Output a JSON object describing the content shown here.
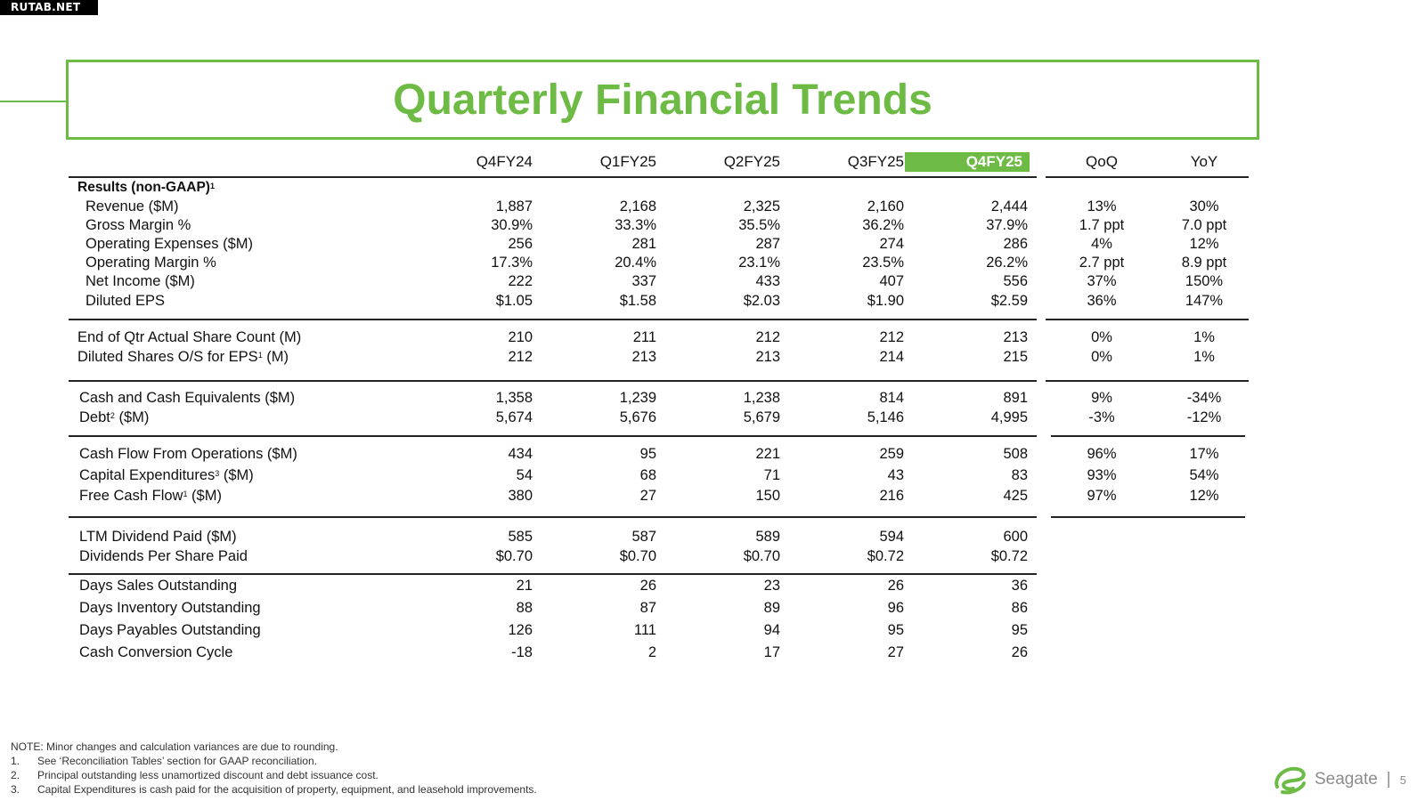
{
  "watermark": "RUTAB.NET",
  "title": "Quarterly Financial Trends",
  "columns": [
    "Q4FY24",
    "Q1FY25",
    "Q2FY25",
    "Q3FY25",
    "Q4FY25"
  ],
  "compare_columns": [
    "QoQ",
    "YoY"
  ],
  "accent_color": "#6dbb45",
  "section_header": {
    "label": "Results (non-GAAP)",
    "sup": "1"
  },
  "groups": [
    {
      "rows": [
        {
          "label": "Revenue ($M)",
          "values": [
            "1,887",
            "2,168",
            "2,325",
            "2,160",
            "2,444"
          ],
          "qoq": "13%",
          "yoy": "30%"
        },
        {
          "label": "Gross Margin %",
          "values": [
            "30.9%",
            "33.3%",
            "35.5%",
            "36.2%",
            "37.9%"
          ],
          "qoq": "1.7 ppt",
          "yoy": "7.0 ppt"
        },
        {
          "label": "Operating Expenses ($M)",
          "values": [
            "256",
            "281",
            "287",
            "274",
            "286"
          ],
          "qoq": "4%",
          "yoy": "12%"
        },
        {
          "label": "Operating Margin %",
          "values": [
            "17.3%",
            "20.4%",
            "23.1%",
            "23.5%",
            "26.2%"
          ],
          "qoq": "2.7 ppt",
          "yoy": "8.9 ppt"
        },
        {
          "label": "Net Income ($M)",
          "values": [
            "222",
            "337",
            "433",
            "407",
            "556"
          ],
          "qoq": "37%",
          "yoy": "150%"
        },
        {
          "label": "Diluted EPS",
          "values": [
            "$1.05",
            "$1.58",
            "$2.03",
            "$1.90",
            "$2.59"
          ],
          "qoq": "36%",
          "yoy": "147%"
        }
      ]
    },
    {
      "rows": [
        {
          "label": "End of Qtr Actual Share Count (M)",
          "values": [
            "210",
            "211",
            "212",
            "212",
            "213"
          ],
          "qoq": "0%",
          "yoy": "1%"
        },
        {
          "label": "Diluted Shares O/S for EPS",
          "sup": "1",
          "suffix": " (M)",
          "values": [
            "212",
            "213",
            "213",
            "214",
            "215"
          ],
          "qoq": "0%",
          "yoy": "1%"
        }
      ]
    },
    {
      "rows": [
        {
          "label": "Cash and Cash Equivalents ($M)",
          "values": [
            "1,358",
            "1,239",
            "1,238",
            "814",
            "891"
          ],
          "qoq": "9%",
          "yoy": "-34%"
        },
        {
          "label": "Debt",
          "sup": "2",
          "suffix": " ($M)",
          "values": [
            "5,674",
            "5,676",
            "5,679",
            "5,146",
            "4,995"
          ],
          "qoq": "-3%",
          "yoy": "-12%"
        }
      ]
    },
    {
      "rows": [
        {
          "label": "Cash Flow From Operations ($M)",
          "values": [
            "434",
            "95",
            "221",
            "259",
            "508"
          ],
          "qoq": "96%",
          "yoy": "17%"
        },
        {
          "label": "Capital Expenditures",
          "sup": "3",
          "suffix": " ($M)",
          "values": [
            "54",
            "68",
            "71",
            "43",
            "83"
          ],
          "qoq": "93%",
          "yoy": "54%"
        },
        {
          "label": "Free Cash Flow",
          "sup": "1",
          "suffix": " ($M)",
          "values": [
            "380",
            "27",
            "150",
            "216",
            "425"
          ],
          "qoq": "97%",
          "yoy": "12%"
        }
      ]
    },
    {
      "rows": [
        {
          "label": "LTM Dividend Paid ($M)",
          "values": [
            "585",
            "587",
            "589",
            "594",
            "600"
          ]
        },
        {
          "label": "Dividends Per Share Paid",
          "values": [
            "$0.70",
            "$0.70",
            "$0.70",
            "$0.72",
            "$0.72"
          ]
        }
      ]
    },
    {
      "rows": [
        {
          "label": "Days Sales Outstanding",
          "values": [
            "21",
            "26",
            "23",
            "26",
            "36"
          ]
        },
        {
          "label": "Days Inventory Outstanding",
          "values": [
            "88",
            "87",
            "89",
            "96",
            "86"
          ]
        },
        {
          "label": "Days Payables Outstanding",
          "values": [
            "126",
            "111",
            "94",
            "95",
            "95"
          ]
        },
        {
          "label": "Cash Conversion Cycle",
          "values": [
            "-18",
            "2",
            "17",
            "27",
            "26"
          ]
        }
      ]
    }
  ],
  "notes": {
    "note": "NOTE: Minor changes and calculation variances are due to rounding.",
    "items": [
      {
        "num": "1.",
        "text": "See ‘Reconciliation Tables’ section for GAAP reconciliation."
      },
      {
        "num": "2.",
        "text": "Principal outstanding less unamortized discount and debt issuance cost."
      },
      {
        "num": "3.",
        "text": "Capital Expenditures is cash paid for the acquisition of property, equipment, and leasehold improvements."
      }
    ]
  },
  "footer": {
    "brand": "Seagate",
    "separator": "|",
    "page": "5",
    "logo_icon": "seagate-swirl-icon"
  }
}
